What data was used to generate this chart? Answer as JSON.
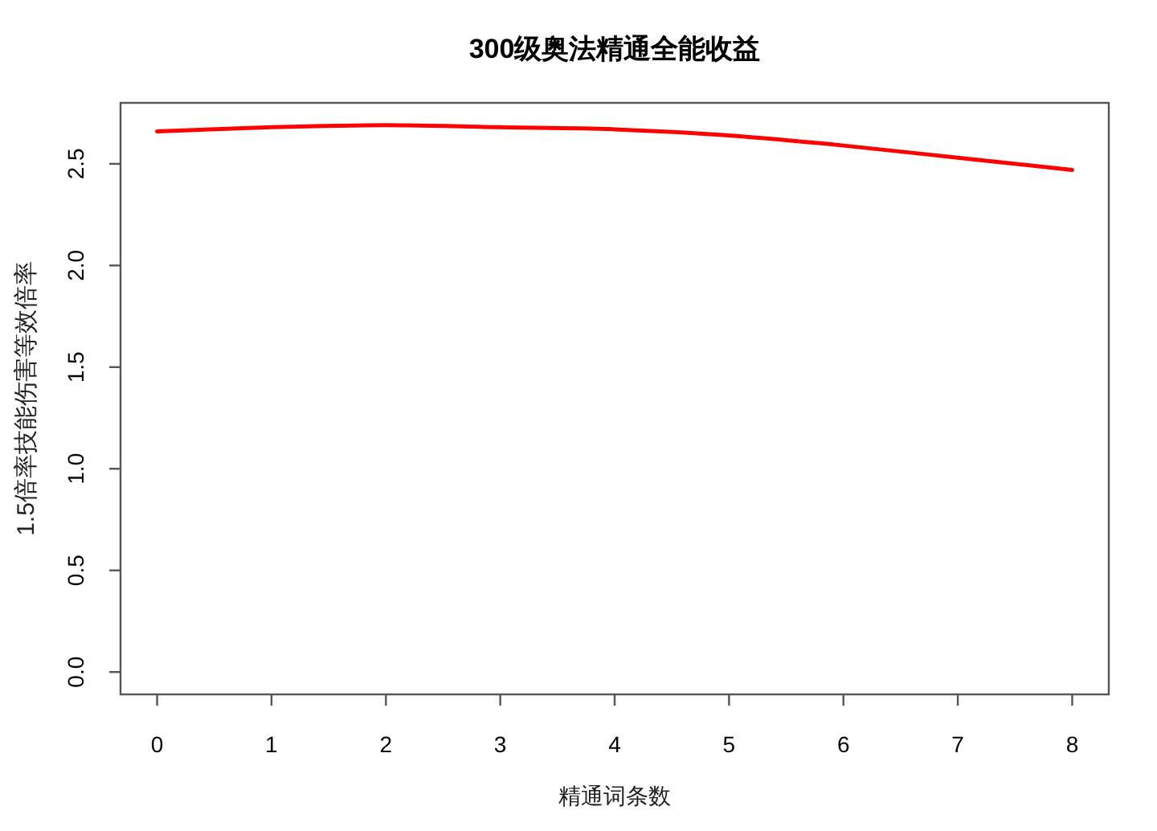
{
  "chart_data": {
    "type": "line",
    "title": "300级奥法精通全能收益",
    "xlabel": "精通词条数",
    "ylabel": "1.5倍率技能伤害等效倍率",
    "x": [
      0,
      1,
      2,
      3,
      4,
      5,
      6,
      7,
      8
    ],
    "series": [
      {
        "color": "#ff0000",
        "values": [
          2.66,
          2.68,
          2.69,
          2.68,
          2.67,
          2.64,
          2.59,
          2.53,
          2.47
        ]
      }
    ],
    "xlim": [
      -0.32,
      8.32
    ],
    "ylim": [
      -0.11,
      2.8
    ],
    "xticks": [
      0,
      1,
      2,
      3,
      4,
      5,
      6,
      7,
      8
    ],
    "yticks": [
      {
        "value": 0,
        "label": "0.0"
      },
      {
        "value": 0.5,
        "label": "0.5"
      },
      {
        "value": 1,
        "label": "1.0"
      },
      {
        "value": 1.5,
        "label": "1.5"
      },
      {
        "value": 2,
        "label": "2.0"
      },
      {
        "value": 2.5,
        "label": "2.5"
      }
    ]
  }
}
